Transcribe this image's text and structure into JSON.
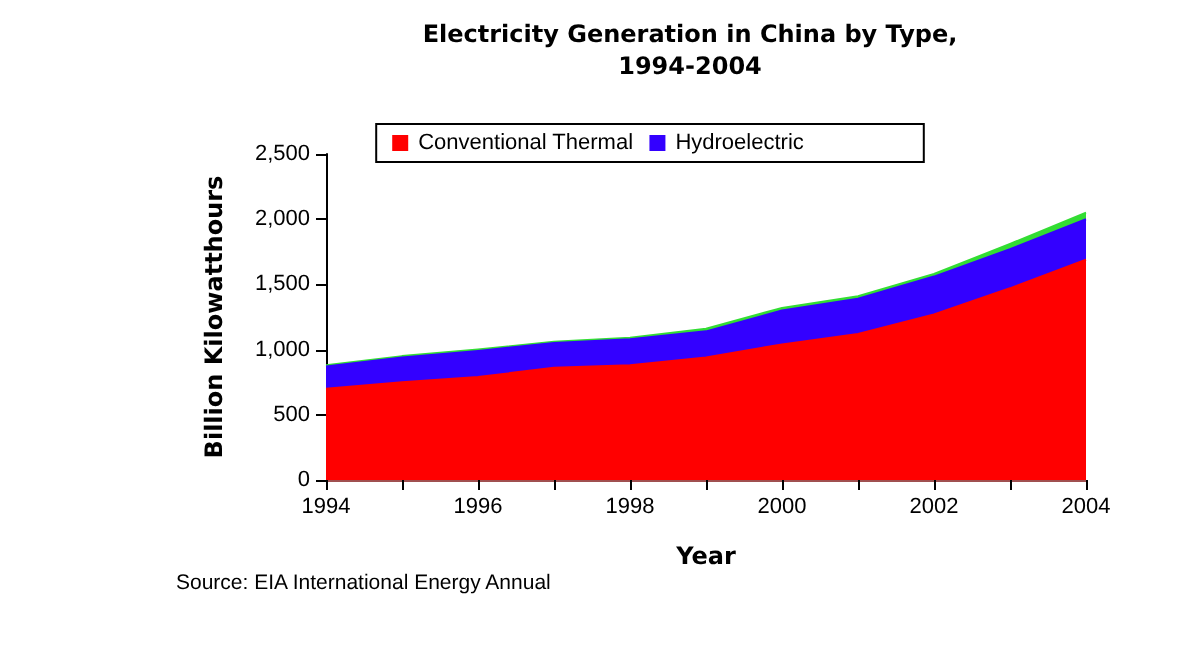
{
  "chart_data": {
    "type": "area",
    "title": "Electricity Generation in China by Type,\n1994-2004",
    "xlabel": "Year",
    "ylabel": "Billion Kilowatthours",
    "annotations": [
      "Source: EIA International Energy Annual"
    ],
    "x": [
      1994,
      1995,
      1996,
      1997,
      1998,
      1999,
      2000,
      2001,
      2002,
      2003,
      2004
    ],
    "stacked": true,
    "series": [
      {
        "name": "Conventional Thermal",
        "color": "#ff0000",
        "values": [
          700,
          750,
          790,
          860,
          880,
          940,
          1040,
          1120,
          1270,
          1470,
          1690
        ]
      },
      {
        "name": "Hydroelectric",
        "color": "#3300ff",
        "values": [
          170,
          190,
          200,
          190,
          200,
          200,
          260,
          270,
          290,
          300,
          310
        ]
      },
      {
        "color": "#33dd33",
        "values": [
          10,
          10,
          10,
          10,
          10,
          20,
          20,
          20,
          20,
          40,
          50
        ]
      }
    ],
    "xlim": [
      1994,
      2004
    ],
    "xticks": [
      1994,
      {
        "value": 1995,
        "label": null
      },
      1996,
      {
        "value": 1997,
        "label": null
      },
      1998,
      {
        "value": 1999,
        "label": null
      },
      2000,
      {
        "value": 2001,
        "label": null
      },
      2002,
      {
        "value": 2003,
        "label": null
      },
      2004
    ],
    "ylim": [
      0,
      2500
    ],
    "yticks": [
      0,
      500,
      {
        "value": 1000,
        "label": "1,000"
      },
      {
        "value": 1500,
        "label": "1,500"
      },
      {
        "value": 2000,
        "label": "2,000"
      },
      {
        "value": 2500,
        "label": "2,500"
      }
    ],
    "grid": false,
    "legend": "top",
    "marker": "none"
  }
}
